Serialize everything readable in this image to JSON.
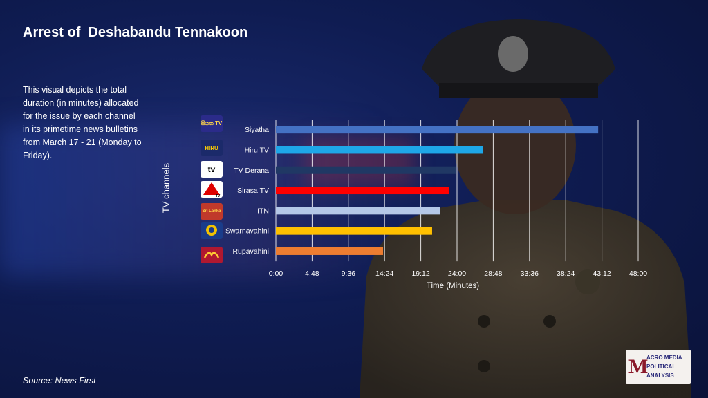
{
  "title": "Arrest of  Deshabandu Tennakoon",
  "description": "This visual depicts the total duration  (in minutes) allocated for the issue by each channel in its primetime news bulletins from March 17 - 21 (Monday to Friday).",
  "source": "Source: News First",
  "brand_text": [
    "ACRO MEDIA",
    "POLITICAL",
    "ANALYSIS"
  ],
  "logo_texts": [
    "සියත TV",
    "HIRU",
    "tv",
    "TV",
    "Sri Lanka",
    "",
    ""
  ],
  "colors": {
    "Siyatha": "#4472c4",
    "Hiru TV": "#1ea7e8",
    "TV Derana": "#203864",
    "Sirasa TV": "#ff0000",
    "ITN": "#b4c7e7",
    "Swarnavahini": "#ffc000",
    "Rupavahini": "#ed7d31"
  },
  "chart_data": {
    "type": "bar",
    "orientation": "horizontal",
    "categories": [
      "Siyatha",
      "Hiru TV",
      "TV Derana",
      "Sirasa TV",
      "ITN",
      "Swarnavahini",
      "Rupavahini"
    ],
    "values": [
      42.7,
      27.4,
      23.9,
      22.9,
      21.8,
      20.7,
      14.2
    ],
    "value_units": "minutes",
    "xlabel": "Time (Minutes)",
    "ylabel": "TV channels",
    "xlim": [
      0,
      48
    ],
    "x_ticks": [
      "0:00",
      "4:48",
      "9:36",
      "14:24",
      "19:12",
      "24:00",
      "28:48",
      "33:36",
      "38:24",
      "43:12",
      "48:00"
    ],
    "grid": "vertical",
    "legend": "none"
  }
}
